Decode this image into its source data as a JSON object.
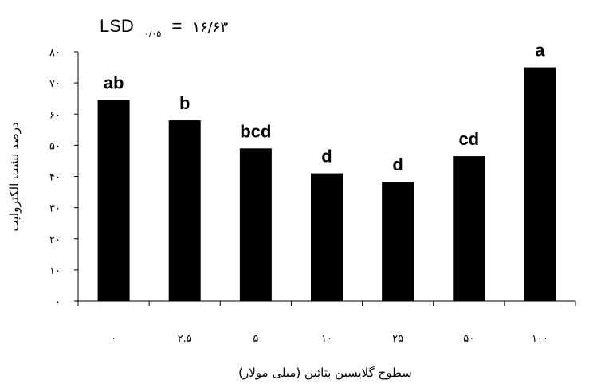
{
  "chart_data": {
    "type": "bar",
    "categories": [
      "٠",
      "٢.۵",
      "۵",
      "١٠",
      "٢۵",
      "۵٠",
      "١٠٠"
    ],
    "values": [
      64.5,
      58,
      49,
      41,
      38.3,
      46.5,
      75
    ],
    "significance_letters": [
      "ab",
      "b",
      "bcd",
      "d",
      "d",
      "cd",
      "a"
    ],
    "ylim": [
      0,
      80
    ],
    "yticks": [
      0,
      10,
      20,
      30,
      40,
      50,
      60,
      70,
      80
    ],
    "ytick_labels": [
      "٠",
      "١٠",
      "٢٠",
      "٣٠",
      "۴٠",
      "۵٠",
      "۶٠",
      "٧٠",
      "٨٠"
    ],
    "xlabel": "سطوح گلایسین بتائین (میلی مولار)",
    "ylabel": "درصد نشت الکترولیت",
    "lsd": {
      "prefix": "LSD",
      "subscript": "٠/٠۵",
      "equals": "=",
      "value": "١۶/۶٣"
    },
    "bar_color": "#000000",
    "grid": false
  }
}
